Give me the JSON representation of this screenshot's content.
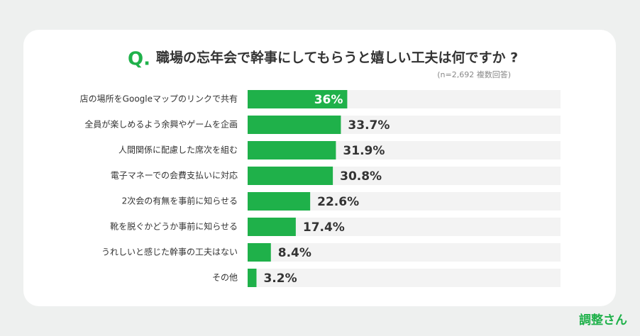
{
  "chart_data": {
    "type": "bar",
    "title_marker": "Q.",
    "title": "職場の忘年会で幹事にしてもらうと嬉しい工夫は何ですか ?",
    "subtitle": "(n=2,692 複数回答)",
    "categories": [
      "店の場所をGoogleマップのリンクで共有",
      "全員が楽しめるよう余興やゲームを企画",
      "人間関係に配慮した席次を組む",
      "電子マネーでの会費支払いに対応",
      "2次会の有無を事前に知らせる",
      "靴を脱ぐかどうか事前に知らせる",
      "うれしいと感じた幹事の工夫はない",
      "その他"
    ],
    "values": [
      36,
      33.7,
      31.9,
      30.8,
      22.6,
      17.4,
      8.4,
      3.2
    ],
    "value_labels": [
      "36%",
      "33.7%",
      "31.9%",
      "30.8%",
      "22.6%",
      "17.4%",
      "8.4%",
      "3.2%"
    ],
    "color": "#1fb14a"
  },
  "footer": {
    "logo": "調整さん"
  }
}
